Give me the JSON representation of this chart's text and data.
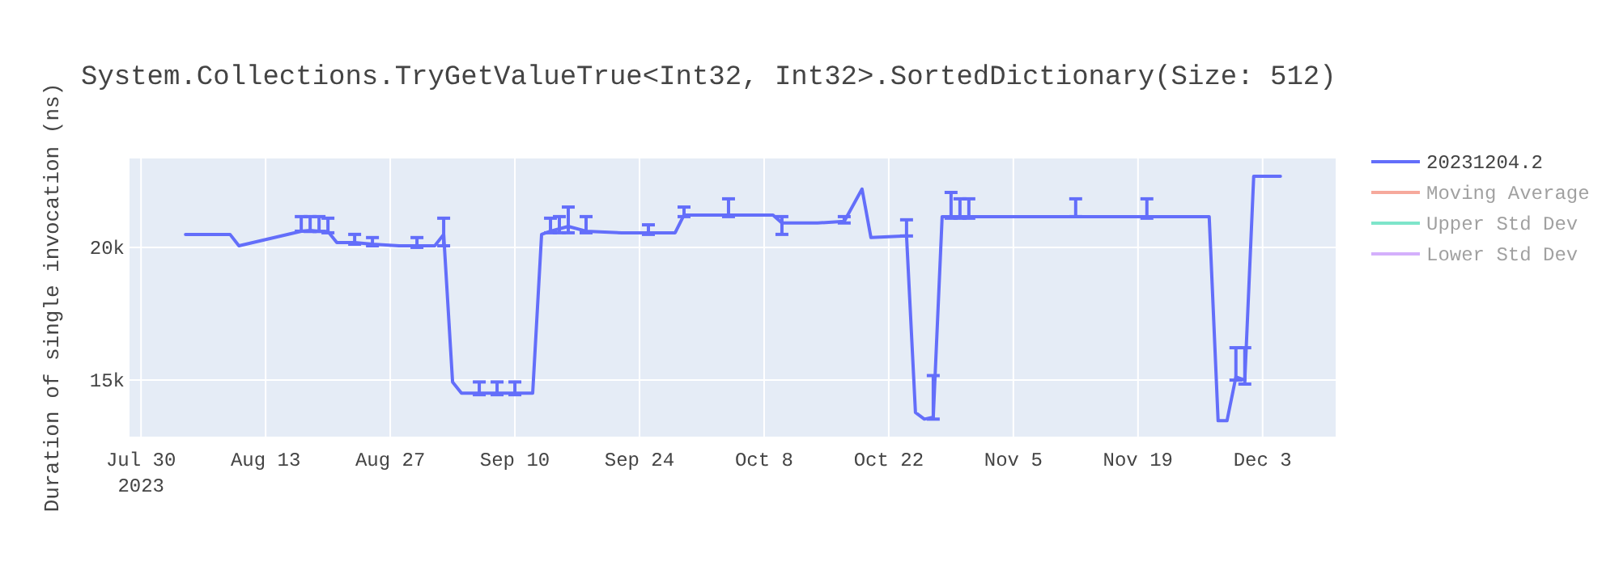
{
  "chart_data": {
    "type": "line",
    "title": "System.Collections.TryGetValueTrue<Int32, Int32>.SortedDictionary(Size: 512)",
    "ylabel": "Duration of single invocation (ns)",
    "x": [
      "2023-08-04",
      "2023-08-09",
      "2023-08-10",
      "2023-08-17",
      "2023-08-18",
      "2023-08-19",
      "2023-08-20",
      "2023-08-21",
      "2023-08-23",
      "2023-08-25",
      "2023-08-28",
      "2023-08-30",
      "2023-09-01",
      "2023-09-02",
      "2023-09-03",
      "2023-09-04",
      "2023-09-06",
      "2023-09-08",
      "2023-09-10",
      "2023-09-12",
      "2023-09-13",
      "2023-09-14",
      "2023-09-15",
      "2023-09-16",
      "2023-09-18",
      "2023-09-22",
      "2023-09-25",
      "2023-09-28",
      "2023-09-29",
      "2023-10-04",
      "2023-10-09",
      "2023-10-10",
      "2023-10-14",
      "2023-10-17",
      "2023-10-19",
      "2023-10-20",
      "2023-10-24",
      "2023-10-25",
      "2023-10-26",
      "2023-10-27",
      "2023-10-28",
      "2023-10-29",
      "2023-10-30",
      "2023-10-31",
      "2023-11-08",
      "2023-11-12",
      "2023-11-14",
      "2023-11-20",
      "2023-11-27",
      "2023-11-28",
      "2023-11-29",
      "2023-11-30",
      "2023-12-01",
      "2023-12-02",
      "2023-12-05"
    ],
    "series": [
      {
        "name": "20231204.2",
        "color": "#636efa",
        "values": [
          20490,
          20490,
          20060,
          20610,
          20640,
          20610,
          20600,
          20180,
          20180,
          20120,
          20060,
          20060,
          20060,
          20490,
          14930,
          14510,
          14510,
          14510,
          14510,
          14510,
          20490,
          20610,
          20700,
          20790,
          20610,
          20550,
          20550,
          20550,
          21220,
          21220,
          21220,
          20920,
          20920,
          20980,
          22200,
          20370,
          20430,
          13780,
          13530,
          13600,
          21160,
          21160,
          21160,
          21160,
          21160,
          21160,
          21160,
          21160,
          21160,
          13470,
          13470,
          15120,
          15000,
          22680,
          22680
        ],
        "errors": [
          null,
          null,
          null,
          [
            20610,
            21160
          ],
          [
            20600,
            21160
          ],
          [
            20600,
            21160
          ],
          [
            20550,
            21100
          ],
          null,
          [
            20120,
            20490
          ],
          [
            20060,
            20370
          ],
          null,
          [
            20000,
            20370
          ],
          null,
          [
            20060,
            21100
          ],
          null,
          null,
          [
            14450,
            14930
          ],
          [
            14450,
            14930
          ],
          [
            14450,
            14930
          ],
          null,
          null,
          [
            20550,
            21100
          ],
          [
            20550,
            21160
          ],
          [
            20550,
            21520
          ],
          [
            20550,
            21160
          ],
          null,
          [
            20490,
            20850
          ],
          null,
          [
            21160,
            21520
          ],
          [
            21160,
            21830
          ],
          null,
          [
            20490,
            21160
          ],
          null,
          [
            20920,
            21160
          ],
          null,
          null,
          [
            20430,
            21040
          ],
          null,
          null,
          [
            13530,
            15170
          ],
          null,
          [
            21100,
            22070
          ],
          [
            21100,
            21830
          ],
          [
            21100,
            21830
          ],
          null,
          [
            21160,
            21830
          ],
          null,
          [
            21100,
            21830
          ],
          null,
          null,
          null,
          [
            15000,
            16220
          ],
          [
            14850,
            16220
          ],
          null,
          null
        ]
      },
      {
        "name": "Moving Average",
        "color": "#ef553b",
        "values": [
          null,
          null,
          null,
          null,
          null,
          null,
          null,
          null,
          null,
          null,
          null,
          null,
          null,
          null,
          null,
          null,
          null,
          null,
          null,
          null,
          null,
          null,
          null,
          null,
          null,
          null,
          null,
          null,
          null,
          null,
          null,
          null,
          null,
          null,
          null,
          null,
          null,
          null,
          null,
          null,
          null,
          null,
          null,
          null,
          null,
          null,
          null,
          null,
          null,
          null,
          null,
          null,
          null,
          null,
          null
        ]
      },
      {
        "name": "Upper Std Dev",
        "color": "#00cc96",
        "values": [
          null,
          null,
          null,
          null,
          null,
          null,
          null,
          null,
          null,
          null,
          null,
          null,
          null,
          null,
          null,
          null,
          null,
          null,
          null,
          null,
          null,
          null,
          null,
          null,
          null,
          null,
          null,
          null,
          null,
          null,
          null,
          null,
          null,
          null,
          null,
          null,
          null,
          null,
          null,
          null,
          null,
          null,
          null,
          null,
          null,
          null,
          null,
          null,
          null,
          null,
          null,
          null,
          null,
          null,
          null
        ]
      },
      {
        "name": "Lower Std Dev",
        "color": "#ab63fa",
        "values": [
          null,
          null,
          null,
          null,
          null,
          null,
          null,
          null,
          null,
          null,
          null,
          null,
          null,
          null,
          null,
          null,
          null,
          null,
          null,
          null,
          null,
          null,
          null,
          null,
          null,
          null,
          null,
          null,
          null,
          null,
          null,
          null,
          null,
          null,
          null,
          null,
          null,
          null,
          null,
          null,
          null,
          null,
          null,
          null,
          null,
          null,
          null,
          null,
          null,
          null,
          null,
          null,
          null,
          null,
          null
        ]
      }
    ],
    "xlim": [
      "2023-07-28T17:00",
      "2023-12-11T05:00"
    ],
    "xticks": [
      {
        "value": "2023-07-30",
        "label": "Jul 30\n2023"
      },
      {
        "value": "2023-08-13",
        "label": "Aug 13"
      },
      {
        "value": "2023-08-27",
        "label": "Aug 27"
      },
      {
        "value": "2023-09-10",
        "label": "Sep 10"
      },
      {
        "value": "2023-09-24",
        "label": "Sep 24"
      },
      {
        "value": "2023-10-08",
        "label": "Oct 8"
      },
      {
        "value": "2023-10-22",
        "label": "Oct 22"
      },
      {
        "value": "2023-11-05",
        "label": "Nov 5"
      },
      {
        "value": "2023-11-19",
        "label": "Nov 19"
      },
      {
        "value": "2023-12-03",
        "label": "Dec 3"
      }
    ],
    "ylim": [
      12870,
      23350
    ],
    "yticks": [
      {
        "value": 15000,
        "label": "15k"
      },
      {
        "value": 20000,
        "label": "20k"
      }
    ],
    "grid": true,
    "legend": "top right",
    "marker": "none",
    "line_style": "solid"
  }
}
